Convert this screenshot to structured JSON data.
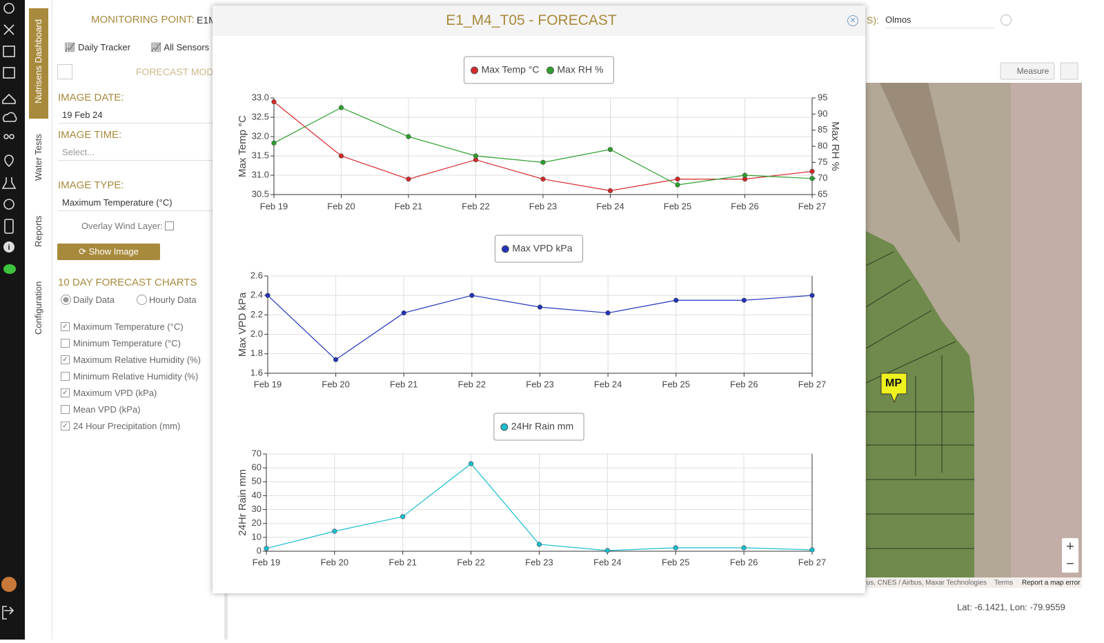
{
  "sidebar_tabs": [
    "Nutrisens Dashboard",
    "Water Tests",
    "Reports",
    "Configuration"
  ],
  "header": {
    "label": "MONITORING POINT:",
    "value": "E1M",
    "right_label": "S):",
    "right_value": "Olmos"
  },
  "toolbar": [
    "Daily Tracker",
    "All Sensors"
  ],
  "panel": {
    "section_title": "FORECAST MOD",
    "image_date_label": "IMAGE DATE:",
    "image_date": "19 Feb 24",
    "image_time_label": "IMAGE TIME:",
    "image_time": "Select...",
    "image_type_label": "IMAGE TYPE:",
    "image_type": "Maximum Temperature (°C)",
    "overlay_label": "Overlay Wind Layer:",
    "button": "Show Image",
    "charts_title": "10 DAY FORECAST CHARTS",
    "radios": [
      {
        "label": "Daily Data",
        "checked": true
      },
      {
        "label": "Hourly Data",
        "checked": false
      }
    ],
    "checkboxes": [
      {
        "label": "Maximum Temperature (°C)",
        "checked": true
      },
      {
        "label": "Minimum Temperature (°C)",
        "checked": false
      },
      {
        "label": "Maximum Relative Humidity (%)",
        "checked": true
      },
      {
        "label": "Minimum Relative Humidity (%)",
        "checked": false
      },
      {
        "label": "Maximum VPD (kPa)",
        "checked": true
      },
      {
        "label": "Mean VPD (kPa)",
        "checked": false
      },
      {
        "label": "24 Hour Precipitation (mm)",
        "checked": true
      }
    ]
  },
  "map": {
    "measure": "Measure",
    "marker": "MP",
    "attribution": "bus, CNES / Airbus, Maxar Technologies",
    "terms": "Terms",
    "report": "Report a map error",
    "coords": "Lat: -6.1421, Lon: -79.9559"
  },
  "modal": {
    "title": "E1_M4_T05 - FORECAST",
    "charts": [
      {
        "type": "line",
        "categories": [
          "Feb 19",
          "Feb 20",
          "Feb 21",
          "Feb 22",
          "Feb 23",
          "Feb 24",
          "Feb 25",
          "Feb 26",
          "Feb 27"
        ],
        "y_label": "Max Temp °C",
        "y2_label": "Max RH %",
        "ylim": [
          30.5,
          33
        ],
        "yticks": [
          {
            "value": 30.5,
            "label": "30.5"
          },
          {
            "value": 31,
            "label": "31.0"
          },
          31.5,
          {
            "value": 32,
            "label": "32.0"
          },
          32.5,
          {
            "value": 33,
            "label": "33.0"
          }
        ],
        "y2lim": [
          65,
          95
        ],
        "y2ticks": [
          65,
          70,
          75,
          80,
          85,
          90,
          95
        ],
        "grid": true,
        "series": [
          {
            "name": "Max Temp °C",
            "color": "#d62728",
            "values": [
              32.9,
              31.5,
              30.9,
              31.4,
              30.9,
              30.6,
              30.9,
              30.9,
              31.1
            ]
          },
          {
            "name": "Max RH %",
            "color": "#2ca02c",
            "axis": "y2",
            "values": [
              81,
              92,
              83,
              77,
              75,
              79,
              68,
              71,
              70
            ]
          }
        ]
      },
      {
        "type": "line",
        "categories": [
          "Feb 19",
          "Feb 20",
          "Feb 21",
          "Feb 22",
          "Feb 23",
          "Feb 24",
          "Feb 25",
          "Feb 26",
          "Feb 27"
        ],
        "y_label": "Max VPD kPa",
        "ylim": [
          1.6,
          2.6
        ],
        "yticks": [
          1.6,
          1.8,
          {
            "value": 2,
            "label": "2.0"
          },
          2.2,
          2.4,
          2.6
        ],
        "grid": true,
        "series": [
          {
            "name": "Max VPD kPa",
            "color": "#2233bb",
            "values": [
              2.4,
              1.74,
              2.22,
              2.4,
              2.28,
              2.22,
              2.35,
              2.35,
              2.4
            ]
          }
        ]
      },
      {
        "type": "line",
        "categories": [
          "Feb 19",
          "Feb 20",
          "Feb 21",
          "Feb 22",
          "Feb 23",
          "Feb 24",
          "Feb 25",
          "Feb 26",
          "Feb 27"
        ],
        "y_label": "24Hr Rain mm",
        "ylim": [
          0,
          70
        ],
        "yticks": [
          0,
          10,
          20,
          30,
          40,
          50,
          60,
          70
        ],
        "grid": true,
        "series": [
          {
            "name": "24Hr Rain mm",
            "color": "#17becf",
            "values": [
              2,
              14.4,
              24.9,
              63,
              5,
              0.5,
              2.5,
              2.5,
              1
            ]
          }
        ]
      }
    ]
  }
}
